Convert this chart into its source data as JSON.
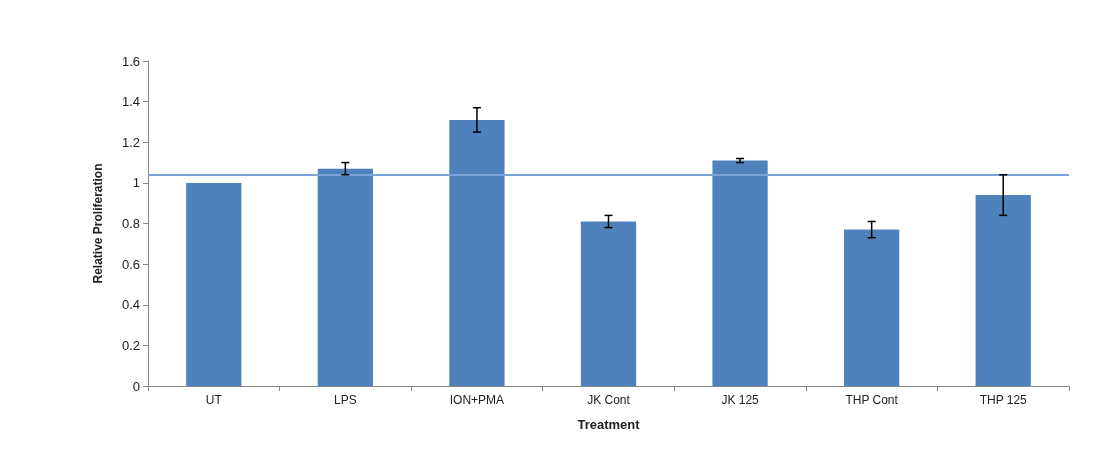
{
  "chart_data": {
    "type": "bar",
    "xlabel": "Treatment",
    "ylabel": "Relative Proliferation",
    "categories": [
      "UT",
      "LPS",
      "ION+PMA",
      "JK Cont",
      "JK 125",
      "THP Cont",
      "THP 125"
    ],
    "values": [
      1.0,
      1.07,
      1.31,
      0.81,
      1.11,
      0.77,
      0.94
    ],
    "errors": [
      null,
      0.03,
      0.06,
      0.03,
      0.01,
      0.04,
      0.1
    ],
    "color": "#4f81bd",
    "ylim": [
      0,
      1.6
    ],
    "yticks": [
      0,
      0.2,
      0.4,
      0.6,
      0.8,
      1,
      1.2,
      1.4,
      1.6
    ],
    "ref_lines": [
      {
        "axis": "y",
        "value": 1.04,
        "label": null,
        "color": "#7ba3d6"
      }
    ],
    "grid": false
  }
}
